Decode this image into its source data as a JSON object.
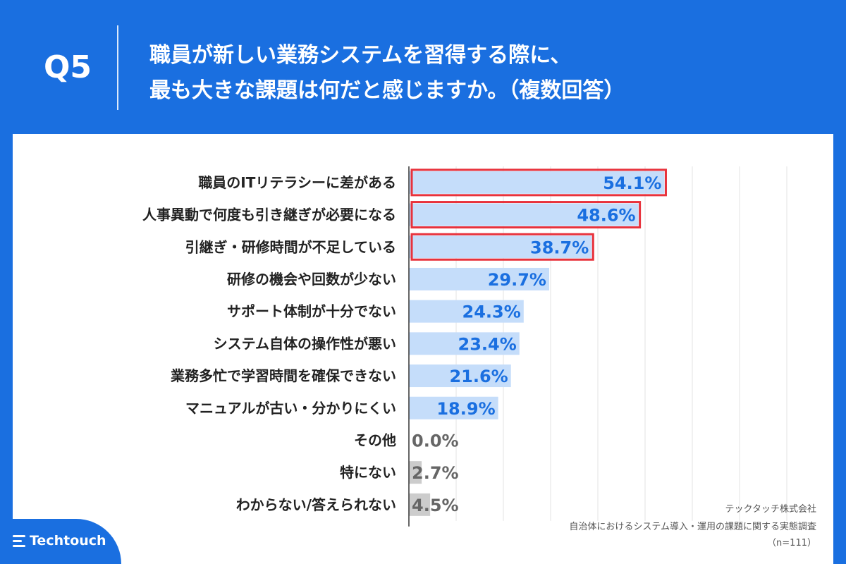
{
  "header": {
    "question": "Q5",
    "title_line1": "職員が新しい業務システムを習得する際に、",
    "title_line2": "最も大きな課題は何だと感じますか。（複数回答）"
  },
  "chart_data": {
    "type": "bar",
    "orientation": "horizontal",
    "xlim": [
      0,
      100
    ],
    "grid": true,
    "categories": [
      "職員のITリテラシーに差がある",
      "人事異動で何度も引き継ぎが必要になる",
      "引継ぎ・研修時間が不足している",
      "研修の機会や回数が少ない",
      "サポート体制が十分でない",
      "システム自体の操作性が悪い",
      "業務多忙で学習時間を確保できない",
      "マニュアルが古い・分かりにくい",
      "その他",
      "特にない",
      "わからない/答えられない"
    ],
    "values": [
      54.1,
      48.6,
      38.7,
      29.7,
      24.3,
      23.4,
      21.6,
      18.9,
      0.0,
      2.7,
      4.5
    ],
    "value_labels": [
      "54.1%",
      "48.6%",
      "38.7%",
      "29.7%",
      "24.3%",
      "23.4%",
      "21.6%",
      "18.9%",
      "0.0%",
      "2.7%",
      "4.5%"
    ],
    "highlighted": [
      true,
      true,
      true,
      false,
      false,
      false,
      false,
      false,
      false,
      false,
      false
    ],
    "muted": [
      false,
      false,
      false,
      false,
      false,
      false,
      false,
      false,
      true,
      true,
      true
    ]
  },
  "colors": {
    "background": "#1a6fe0",
    "bar": "#c5ddfa",
    "bar_muted": "#cccccc",
    "value_text": "#1a6fe0",
    "value_text_muted": "#666666",
    "highlight_border": "#e8323c",
    "grid": "#e3e3e3",
    "axis": "#333333"
  },
  "footer": {
    "company": "テックタッチ株式会社",
    "survey": "自治体におけるシステム導入・運用の課題に関する実態調査",
    "sample": "（n=111）",
    "logo_text": "Techtouch"
  }
}
